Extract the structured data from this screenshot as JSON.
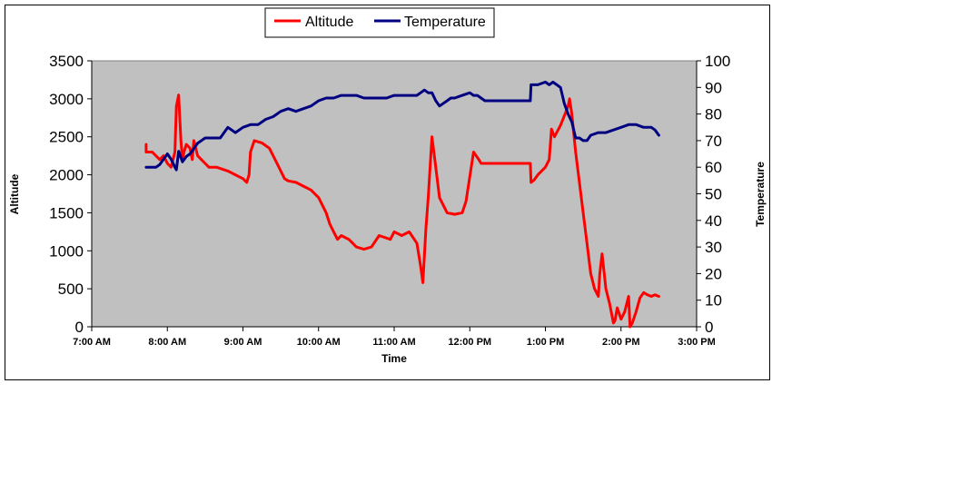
{
  "chart_data": {
    "type": "line",
    "xlabel": "Time",
    "ylabel_left": "Altitude",
    "ylabel_right": "Temperature",
    "ylim_left": [
      0,
      3500
    ],
    "ylim_right": [
      0,
      100
    ],
    "xlim": [
      7.0,
      15.0
    ],
    "left_ticks": [
      "0",
      "500",
      "1000",
      "1500",
      "2000",
      "2500",
      "3000",
      "3500"
    ],
    "left_tick_values": [
      0,
      500,
      1000,
      1500,
      2000,
      2500,
      3000,
      3500
    ],
    "right_ticks": [
      "0",
      "10",
      "20",
      "30",
      "40",
      "50",
      "60",
      "70",
      "80",
      "90",
      "100"
    ],
    "right_tick_values": [
      0,
      10,
      20,
      30,
      40,
      50,
      60,
      70,
      80,
      90,
      100
    ],
    "x_ticks": [
      "7:00 AM",
      "8:00 AM",
      "9:00 AM",
      "10:00 AM",
      "11:00 AM",
      "12:00 PM",
      "1:00 PM",
      "2:00 PM",
      "3:00 PM"
    ],
    "x_tick_values": [
      7,
      8,
      9,
      10,
      11,
      12,
      13,
      14,
      15
    ],
    "legend": [
      {
        "name": "Altitude",
        "color": "#ff0000"
      },
      {
        "name": "Temperature",
        "color": "#000080"
      }
    ],
    "plot_background": "#c0c0c0",
    "series": [
      {
        "name": "Altitude",
        "axis": "left",
        "color": "#ff0000",
        "x": [
          7.72,
          7.72,
          7.8,
          7.9,
          7.95,
          8.0,
          8.05,
          8.1,
          8.12,
          8.15,
          8.18,
          8.2,
          8.22,
          8.25,
          8.3,
          8.33,
          8.35,
          8.4,
          8.45,
          8.5,
          8.55,
          8.65,
          8.8,
          8.9,
          9.0,
          9.05,
          9.08,
          9.1,
          9.15,
          9.25,
          9.35,
          9.45,
          9.55,
          9.6,
          9.7,
          9.8,
          9.9,
          10.0,
          10.1,
          10.15,
          10.2,
          10.25,
          10.3,
          10.4,
          10.5,
          10.6,
          10.7,
          10.8,
          10.95,
          11.0,
          11.1,
          11.2,
          11.3,
          11.35,
          11.38,
          11.42,
          11.45,
          11.5,
          11.55,
          11.6,
          11.7,
          11.8,
          11.9,
          11.95,
          12.05,
          12.12,
          12.15,
          12.25,
          12.5,
          12.8,
          12.81,
          12.85,
          12.9,
          13.0,
          13.05,
          13.08,
          13.12,
          13.2,
          13.3,
          13.32,
          13.35,
          13.4,
          13.5,
          13.55,
          13.6,
          13.65,
          13.7,
          13.72,
          13.75,
          13.8,
          13.85,
          13.9,
          13.92,
          13.95,
          14.0,
          14.05,
          14.1,
          14.12,
          14.15,
          14.2,
          14.25,
          14.3,
          14.35,
          14.4,
          14.45,
          14.5
        ],
        "values": [
          2400,
          2300,
          2300,
          2200,
          2250,
          2150,
          2100,
          2300,
          2900,
          3050,
          2450,
          2200,
          2300,
          2400,
          2350,
          2200,
          2450,
          2250,
          2200,
          2150,
          2100,
          2100,
          2050,
          2000,
          1950,
          1900,
          2000,
          2300,
          2450,
          2420,
          2350,
          2150,
          1950,
          1920,
          1900,
          1850,
          1800,
          1700,
          1500,
          1350,
          1250,
          1150,
          1200,
          1150,
          1050,
          1020,
          1050,
          1200,
          1150,
          1250,
          1200,
          1250,
          1100,
          800,
          580,
          1300,
          1700,
          2500,
          2100,
          1700,
          1500,
          1480,
          1500,
          1650,
          2300,
          2200,
          2150,
          2150,
          2150,
          2150,
          1900,
          1930,
          2000,
          2100,
          2200,
          2600,
          2500,
          2650,
          2900,
          3000,
          2800,
          2300,
          1500,
          1100,
          700,
          500,
          400,
          700,
          960,
          500,
          300,
          50,
          80,
          250,
          100,
          200,
          400,
          0,
          50,
          200,
          380,
          450,
          420,
          400,
          420,
          400
        ]
      },
      {
        "name": "Temperature",
        "axis": "right",
        "color": "#000080",
        "x": [
          7.72,
          7.85,
          7.9,
          7.95,
          8.0,
          8.05,
          8.1,
          8.12,
          8.15,
          8.2,
          8.25,
          8.3,
          8.35,
          8.4,
          8.5,
          8.6,
          8.7,
          8.75,
          8.8,
          8.9,
          9.0,
          9.1,
          9.2,
          9.3,
          9.4,
          9.5,
          9.6,
          9.7,
          9.8,
          9.9,
          10.0,
          10.1,
          10.2,
          10.3,
          10.4,
          10.5,
          10.6,
          10.7,
          10.8,
          10.9,
          11.0,
          11.1,
          11.2,
          11.3,
          11.35,
          11.4,
          11.45,
          11.5,
          11.55,
          11.6,
          11.7,
          11.75,
          11.8,
          11.9,
          12.0,
          12.05,
          12.1,
          12.2,
          12.3,
          12.5,
          12.8,
          12.81,
          12.9,
          13.0,
          13.05,
          13.1,
          13.15,
          13.2,
          13.25,
          13.3,
          13.35,
          13.4,
          13.45,
          13.5,
          13.55,
          13.6,
          13.7,
          13.8,
          13.9,
          14.0,
          14.1,
          14.2,
          14.3,
          14.4,
          14.45,
          14.5
        ],
        "values": [
          60,
          60,
          61,
          63,
          65,
          63,
          60,
          59,
          66,
          62,
          64,
          65,
          67,
          69,
          71,
          71,
          71,
          73,
          75,
          73,
          75,
          76,
          76,
          78,
          79,
          81,
          82,
          81,
          82,
          83,
          85,
          86,
          86,
          87,
          87,
          87,
          86,
          86,
          86,
          86,
          87,
          87,
          87,
          87,
          88,
          89,
          88,
          88,
          85,
          83,
          85,
          86,
          86,
          87,
          88,
          87,
          87,
          85,
          85,
          85,
          85,
          91,
          91,
          92,
          91,
          92,
          91,
          90,
          84,
          80,
          77,
          71,
          71,
          70,
          70,
          72,
          73,
          73,
          74,
          75,
          76,
          76,
          75,
          75,
          74,
          72
        ]
      }
    ]
  }
}
